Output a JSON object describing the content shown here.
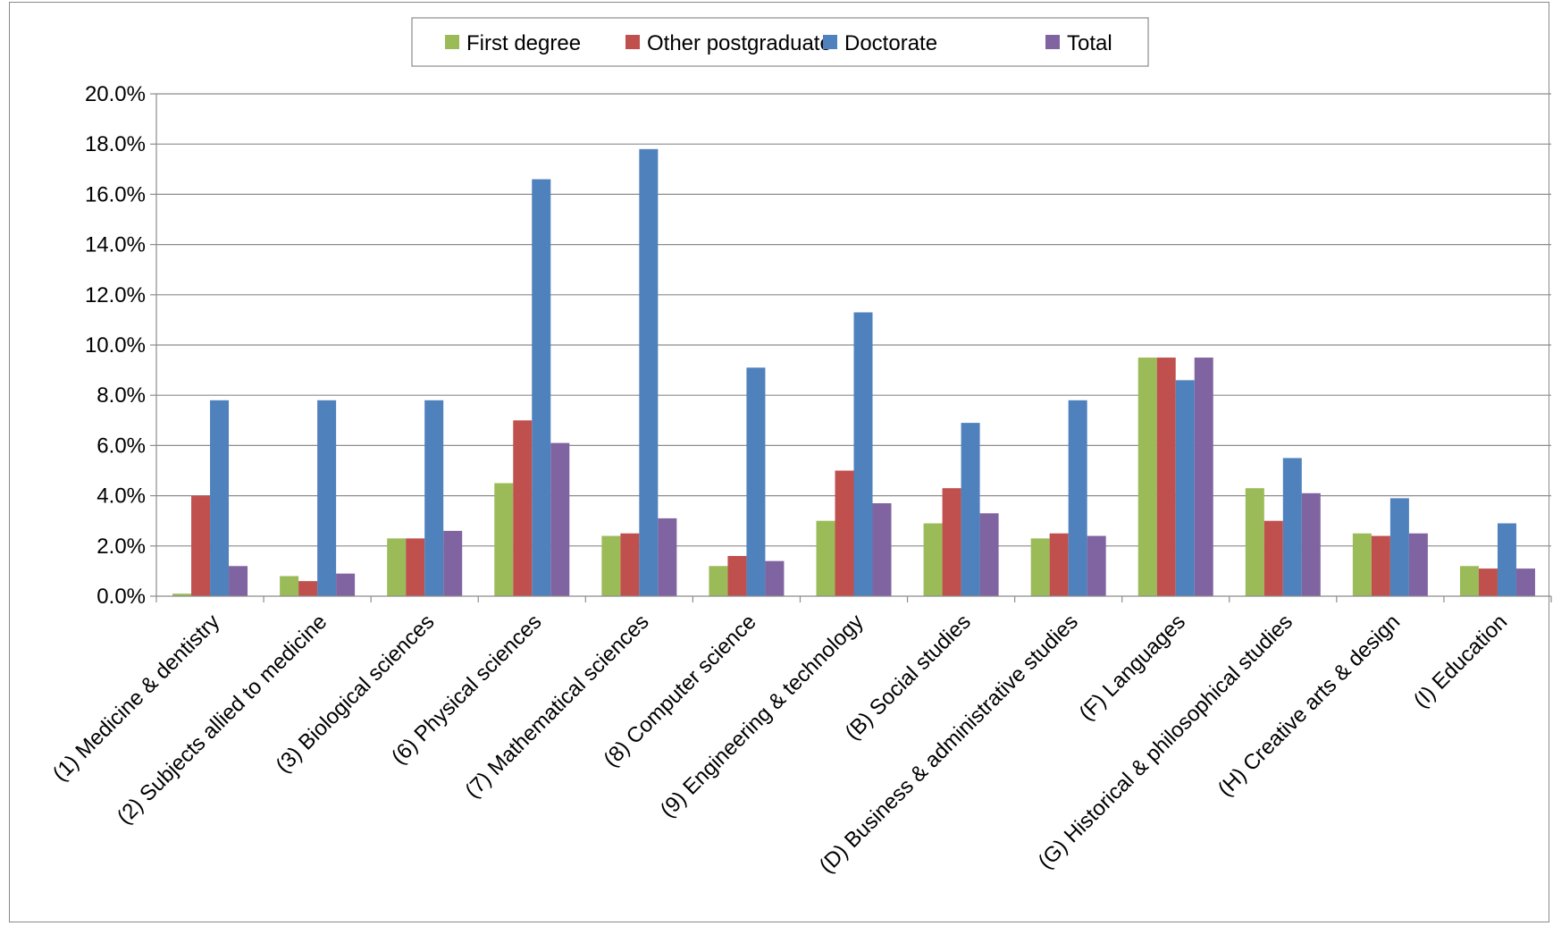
{
  "chart_data": {
    "type": "bar",
    "categories": [
      "(1) Medicine & dentistry",
      "(2) Subjects allied to medicine",
      "(3) Biological sciences",
      "(6) Physical sciences",
      "(7) Mathematical sciences",
      "(8) Computer science",
      "(9) Engineering & technology",
      "(B) Social studies",
      "(D) Business & administrative studies",
      "(F) Languages",
      "(G) Historical & philosophical studies",
      "(H) Creative arts & design",
      "(I) Education"
    ],
    "series": [
      {
        "name": "First degree",
        "color": "#9bbb59",
        "values": [
          0.1,
          0.8,
          2.3,
          4.5,
          2.4,
          1.2,
          3.0,
          2.9,
          2.3,
          9.5,
          4.3,
          2.5,
          1.2
        ]
      },
      {
        "name": "Other postgraduate",
        "color": "#c0504d",
        "values": [
          4.0,
          0.6,
          2.3,
          7.0,
          2.5,
          1.6,
          5.0,
          4.3,
          2.5,
          9.5,
          3.0,
          2.4,
          1.1
        ]
      },
      {
        "name": "Doctorate",
        "color": "#4f81bd",
        "values": [
          7.8,
          7.8,
          7.8,
          16.6,
          17.8,
          9.1,
          11.3,
          6.9,
          7.8,
          8.6,
          5.5,
          3.9,
          2.9
        ]
      },
      {
        "name": "Total",
        "color": "#8064a2",
        "values": [
          1.2,
          0.9,
          2.6,
          6.1,
          3.1,
          1.4,
          3.7,
          3.3,
          2.4,
          9.5,
          4.1,
          2.5,
          1.1
        ]
      }
    ],
    "ylim": [
      0,
      20
    ],
    "yticks": [
      "0.0%",
      "2.0%",
      "4.0%",
      "6.0%",
      "8.0%",
      "10.0%",
      "12.0%",
      "14.0%",
      "16.0%",
      "18.0%",
      "20.0%"
    ],
    "title": "",
    "xlabel": "",
    "ylabel": "",
    "grid": true,
    "legend": "top-center"
  }
}
